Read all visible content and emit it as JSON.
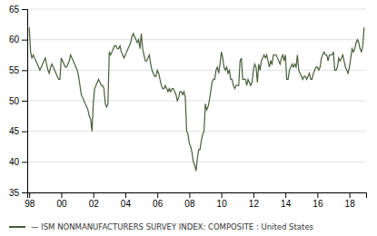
{
  "chart_data": {
    "type": "line",
    "categories": [
      "98",
      null,
      null,
      null,
      null,
      null,
      null,
      null,
      null,
      null,
      null,
      null,
      null,
      null,
      null,
      null,
      null,
      null,
      null,
      null,
      null,
      null,
      null,
      null,
      "00",
      null,
      null,
      null,
      null,
      null,
      null,
      null,
      null,
      null,
      null,
      null,
      null,
      null,
      null,
      null,
      null,
      null,
      null,
      null,
      null,
      null,
      null,
      null,
      "02",
      null,
      null,
      null,
      null,
      null,
      null,
      null,
      null,
      null,
      null,
      null,
      null,
      null,
      null,
      null,
      null,
      null,
      null,
      null,
      null,
      null,
      null,
      null,
      "04",
      null,
      null,
      null,
      null,
      null,
      null,
      null,
      null,
      null,
      null,
      null,
      null,
      null,
      null,
      null,
      null,
      null,
      null,
      null,
      null,
      null,
      null,
      null,
      "06",
      null,
      null,
      null,
      null,
      null,
      null,
      null,
      null,
      null,
      null,
      null,
      null,
      null,
      null,
      null,
      null,
      null,
      null,
      null,
      null,
      null,
      null,
      null,
      "08",
      null,
      null,
      null,
      null,
      null,
      null,
      null,
      null,
      null,
      null,
      null,
      null,
      null,
      null,
      null,
      null,
      null,
      null,
      null,
      null,
      null,
      null,
      null,
      "10",
      null,
      null,
      null,
      null,
      null,
      null,
      null,
      null,
      null,
      null,
      null,
      null,
      null,
      null,
      null,
      null,
      null,
      null,
      null,
      null,
      null,
      null,
      null,
      "12",
      null,
      null,
      null,
      null,
      null,
      null,
      null,
      null,
      null,
      null,
      null,
      null,
      null,
      null,
      null,
      null,
      null,
      null,
      null,
      null,
      null,
      null,
      null,
      "14",
      null,
      null,
      null,
      null,
      null,
      null,
      null,
      null,
      null,
      null,
      null,
      null,
      null,
      null,
      null,
      null,
      null,
      null,
      null,
      null,
      null,
      null,
      null,
      "16",
      null,
      null,
      null,
      null,
      null,
      null,
      null,
      null,
      null,
      null,
      null,
      null,
      null,
      null,
      null,
      null,
      null,
      null,
      null,
      null,
      null,
      null,
      null,
      "18",
      null,
      null,
      null,
      null,
      null,
      null,
      null,
      null,
      null,
      null,
      null
    ],
    "series": [
      {
        "name": "— ISM NONMANUFACTURERS SURVEY INDEX: COMPOSITE : United States",
        "color": "#4a5e3a",
        "values": [
          62.0,
          58.0,
          57.0,
          57.5,
          57.0,
          56.5,
          56.0,
          55.5,
          55.0,
          55.5,
          56.0,
          56.5,
          57.0,
          56.0,
          55.0,
          54.5,
          55.5,
          56.0,
          55.5,
          55.0,
          54.5,
          54.0,
          53.5,
          53.5,
          57.0,
          56.5,
          56.0,
          55.5,
          55.5,
          56.0,
          56.5,
          57.5,
          57.0,
          56.5,
          56.0,
          55.5,
          55.0,
          54.0,
          52.5,
          51.0,
          50.5,
          50.0,
          49.5,
          49.0,
          48.5,
          47.5,
          47.0,
          45.0,
          49.5,
          52.0,
          52.5,
          53.0,
          53.5,
          53.0,
          52.5,
          52.5,
          52.0,
          49.5,
          49.0,
          49.5,
          58.0,
          57.5,
          58.0,
          58.5,
          59.0,
          59.0,
          58.5,
          58.5,
          59.0,
          58.0,
          57.5,
          57.0,
          57.5,
          58.0,
          58.5,
          59.0,
          59.5,
          60.5,
          61.0,
          60.5,
          60.0,
          59.5,
          60.0,
          58.5,
          61.0,
          58.5,
          57.5,
          56.5,
          56.5,
          57.0,
          57.5,
          56.0,
          55.0,
          54.5,
          54.0,
          54.0,
          55.0,
          54.5,
          53.5,
          52.5,
          52.0,
          52.0,
          52.5,
          52.0,
          51.5,
          52.0,
          51.5,
          52.0,
          52.0,
          51.5,
          51.0,
          50.0,
          50.5,
          51.5,
          51.5,
          51.0,
          51.5,
          50.5,
          45.0,
          44.5,
          43.0,
          42.5,
          41.5,
          40.0,
          39.5,
          38.5,
          40.5,
          42.0,
          42.0,
          43.5,
          44.5,
          45.0,
          49.5,
          48.5,
          49.0,
          50.0,
          51.5,
          53.0,
          53.5,
          53.5,
          55.0,
          55.5,
          54.5,
          56.0,
          58.0,
          57.0,
          55.5,
          55.0,
          55.5,
          54.5,
          55.0,
          53.5,
          53.5,
          52.5,
          52.0,
          52.5,
          52.5,
          52.5,
          56.5,
          57.0,
          53.5,
          53.5,
          53.5,
          52.5,
          53.5,
          53.0,
          52.5,
          53.0,
          55.0,
          56.0,
          55.5,
          53.0,
          56.0,
          55.0,
          56.5,
          57.0,
          57.5,
          57.0,
          57.5,
          56.5,
          55.5,
          56.5,
          56.0,
          57.5,
          57.5,
          57.5,
          57.0,
          56.5,
          56.0,
          57.0,
          57.5,
          56.5,
          57.5,
          53.5,
          53.5,
          55.0,
          55.5,
          56.0,
          55.5,
          56.0,
          55.5,
          57.5,
          55.0,
          54.5,
          54.0,
          53.5,
          54.0,
          54.0,
          53.5,
          54.0,
          54.5,
          53.5,
          53.5,
          54.5,
          55.0,
          55.5,
          55.5,
          55.0,
          55.5,
          57.0,
          57.5,
          58.0,
          57.5,
          57.5,
          56.5,
          57.5,
          57.5,
          57.5,
          58.0,
          55.0,
          55.0,
          55.5,
          57.0,
          56.5,
          57.0,
          57.5,
          56.5,
          55.5,
          55.0,
          54.5,
          55.5,
          57.0,
          58.5,
          58.0,
          58.5,
          59.5,
          60.0,
          59.5,
          58.5,
          58.0,
          59.0,
          62.0
        ]
      }
    ],
    "ylim": [
      35,
      65
    ],
    "yticks": [
      35,
      40,
      45,
      50,
      55,
      60,
      65
    ],
    "grid": true,
    "legend": "bottom-left"
  }
}
